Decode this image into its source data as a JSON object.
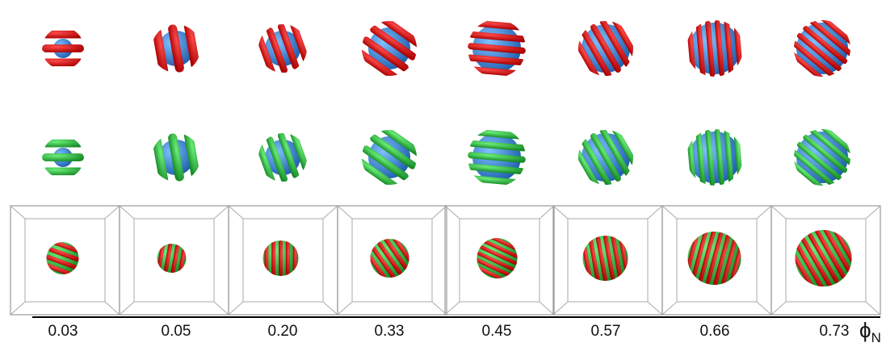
{
  "columns": [
    {
      "label": "0.03"
    },
    {
      "label": "0.05"
    },
    {
      "label": "0.20"
    },
    {
      "label": "0.33"
    },
    {
      "label": "0.45"
    },
    {
      "label": "0.57"
    },
    {
      "label": "0.66"
    },
    {
      "label": "0.73"
    }
  ],
  "axis_label": {
    "symbol": "ϕ",
    "subscript": "N"
  }
}
